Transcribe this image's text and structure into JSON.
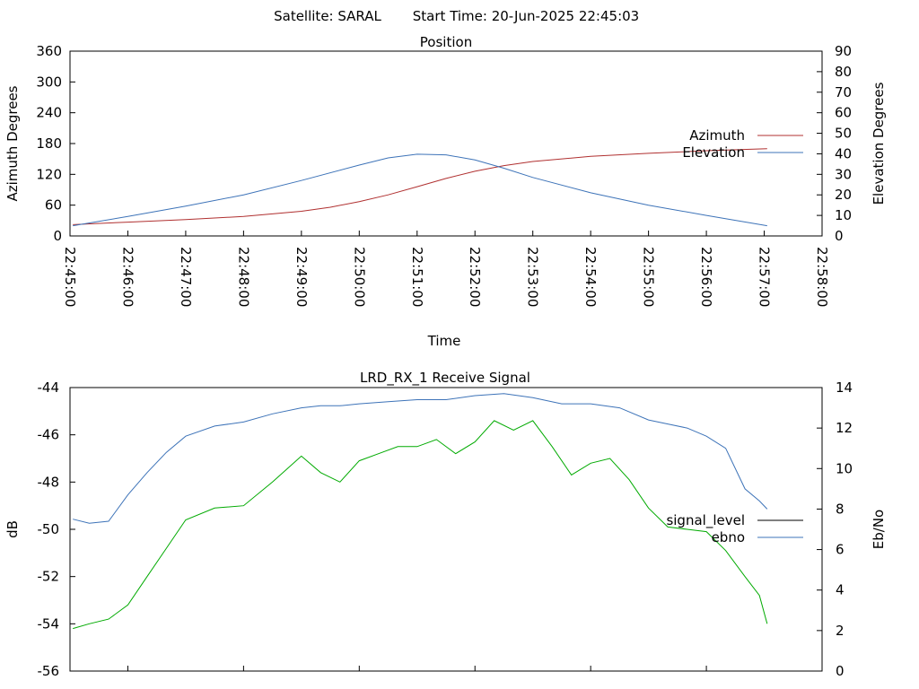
{
  "header": {
    "satellite": "Satellite: SARAL",
    "start_time": "Start Time: 20-Jun-2025 22:45:03"
  },
  "chart_data": [
    {
      "type": "line",
      "title": "Position",
      "xlabel": "Time",
      "ylabel": "Azimuth Degrees",
      "y2label": "Elevation Degrees",
      "x_ticks": [
        "22:45:00",
        "22:46:00",
        "22:47:00",
        "22:48:00",
        "22:49:00",
        "22:50:00",
        "22:51:00",
        "22:52:00",
        "22:53:00",
        "22:54:00",
        "22:55:00",
        "22:56:00",
        "22:57:00",
        "22:58:00"
      ],
      "y_ticks": [
        "0",
        "60",
        "120",
        "180",
        "240",
        "300",
        "360"
      ],
      "y2_ticks": [
        "0",
        "10",
        "20",
        "30",
        "40",
        "50",
        "60",
        "70",
        "80",
        "90"
      ],
      "xlim": [
        "22:45:00",
        "22:58:00"
      ],
      "ylim": [
        0,
        360
      ],
      "y2lim": [
        0,
        90
      ],
      "legend_position": "right",
      "series": [
        {
          "name": "Azimuth",
          "axis": "left",
          "color": "#b03030",
          "x": [
            "22:45:03",
            "22:46:00",
            "22:47:00",
            "22:48:00",
            "22:49:00",
            "22:49:30",
            "22:50:00",
            "22:50:30",
            "22:51:00",
            "22:51:30",
            "22:52:00",
            "22:52:30",
            "22:53:00",
            "22:54:00",
            "22:55:00",
            "22:56:00",
            "22:57:03"
          ],
          "y": [
            22,
            27,
            32,
            38,
            48,
            56,
            67,
            80,
            96,
            112,
            126,
            137,
            145,
            155,
            161,
            166,
            170
          ]
        },
        {
          "name": "Elevation",
          "axis": "right",
          "color": "#3d73b8",
          "x": [
            "22:45:03",
            "22:46:00",
            "22:47:00",
            "22:48:00",
            "22:49:00",
            "22:50:00",
            "22:50:30",
            "22:51:00",
            "22:51:30",
            "22:52:00",
            "22:52:30",
            "22:53:00",
            "22:54:00",
            "22:55:00",
            "22:56:00",
            "22:57:03"
          ],
          "y": [
            5,
            9.5,
            14.5,
            20,
            27,
            34.5,
            38,
            39.8,
            39.5,
            37,
            33,
            28.5,
            21,
            15,
            10,
            5
          ]
        }
      ]
    },
    {
      "type": "line",
      "title": "LRD_RX_1 Receive Signal",
      "ylabel": "dB",
      "y2label": "Eb/No",
      "y_ticks": [
        "-56",
        "-54",
        "-52",
        "-50",
        "-48",
        "-46",
        "-44"
      ],
      "y2_ticks": [
        "0",
        "2",
        "4",
        "6",
        "8",
        "10",
        "12",
        "14"
      ],
      "ylim": [
        -56,
        -44
      ],
      "y2lim": [
        0,
        14
      ],
      "legend_position": "right",
      "series": [
        {
          "name": "signal_level",
          "axis": "left",
          "color": "#00aa00",
          "legend_color": "#000000",
          "x": [
            "22:45:03",
            "22:45:20",
            "22:45:40",
            "22:46:00",
            "22:46:20",
            "22:46:40",
            "22:47:00",
            "22:47:30",
            "22:48:00",
            "22:48:30",
            "22:49:00",
            "22:49:20",
            "22:49:40",
            "22:50:00",
            "22:50:20",
            "22:50:40",
            "22:51:00",
            "22:51:20",
            "22:51:40",
            "22:52:00",
            "22:52:20",
            "22:52:40",
            "22:53:00",
            "22:53:20",
            "22:53:40",
            "22:54:00",
            "22:54:20",
            "22:54:40",
            "22:55:00",
            "22:55:20",
            "22:55:40",
            "22:56:00",
            "22:56:20",
            "22:56:40",
            "22:56:55",
            "22:57:03"
          ],
          "y": [
            -54.2,
            -54.0,
            -53.8,
            -53.2,
            -52.0,
            -50.8,
            -49.6,
            -49.1,
            -49.0,
            -48.0,
            -46.9,
            -47.6,
            -48.0,
            -47.1,
            -46.8,
            -46.5,
            -46.5,
            -46.2,
            -46.8,
            -46.3,
            -45.4,
            -45.8,
            -45.4,
            -46.5,
            -47.7,
            -47.2,
            -47.0,
            -47.9,
            -49.1,
            -49.9,
            -50.0,
            -50.1,
            -50.9,
            -52.0,
            -52.8,
            -54.0
          ]
        },
        {
          "name": "ebno",
          "axis": "right",
          "color": "#3d73b8",
          "x": [
            "22:45:03",
            "22:45:20",
            "22:45:40",
            "22:46:00",
            "22:46:20",
            "22:46:40",
            "22:47:00",
            "22:47:30",
            "22:48:00",
            "22:48:30",
            "22:49:00",
            "22:49:20",
            "22:49:40",
            "22:50:00",
            "22:50:30",
            "22:51:00",
            "22:51:30",
            "22:52:00",
            "22:52:30",
            "22:53:00",
            "22:53:30",
            "22:54:00",
            "22:54:30",
            "22:55:00",
            "22:55:20",
            "22:55:40",
            "22:56:00",
            "22:56:20",
            "22:56:40",
            "22:56:55",
            "22:57:03"
          ],
          "y": [
            7.5,
            7.3,
            7.4,
            8.7,
            9.8,
            10.8,
            11.6,
            12.1,
            12.3,
            12.7,
            13.0,
            13.1,
            13.1,
            13.2,
            13.3,
            13.4,
            13.4,
            13.6,
            13.7,
            13.5,
            13.2,
            13.2,
            13.0,
            12.4,
            12.2,
            12.0,
            11.6,
            11.0,
            9.0,
            8.4,
            8.0
          ]
        }
      ]
    }
  ]
}
